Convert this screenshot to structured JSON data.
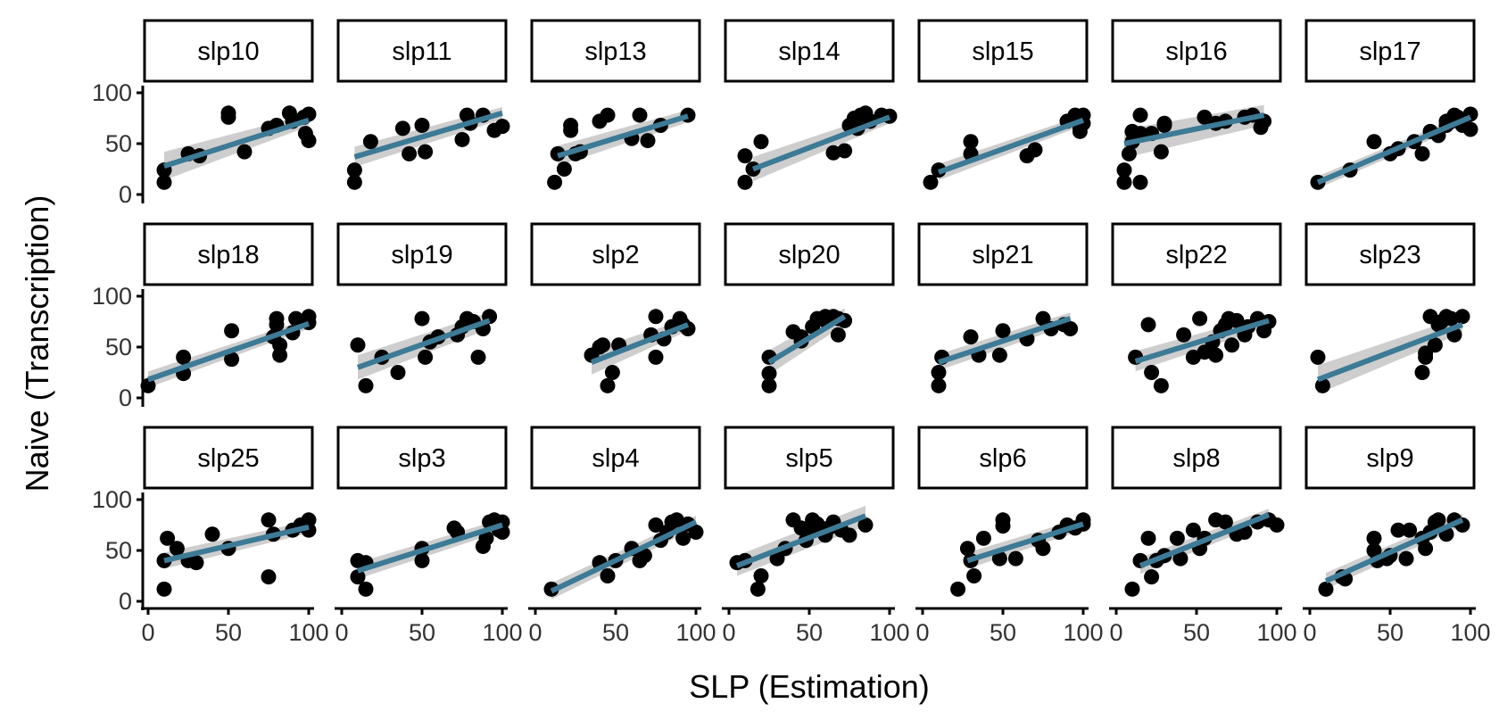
{
  "chart_data": {
    "type": "scatter",
    "layout": "facet-grid 3 rows x 7 columns",
    "xlabel": "SLP (Estimation)",
    "ylabel": "Naive (Transcription)",
    "xlim": [
      0,
      100
    ],
    "ylim": [
      0,
      100
    ],
    "xticks": [
      "0",
      "50",
      "100"
    ],
    "yticks": [
      "0",
      "50",
      "100"
    ],
    "grid": false,
    "point_color": "#000000",
    "line_color": "#3d7a96",
    "band_color": "#bebebe",
    "panels": [
      {
        "label": "slp10",
        "x": [
          10,
          10,
          25,
          32,
          50,
          50,
          60,
          75,
          80,
          88,
          90,
          97,
          98,
          100,
          100
        ],
        "y": [
          12,
          24,
          40,
          38,
          76,
          80,
          42,
          65,
          68,
          80,
          72,
          76,
          60,
          53,
          79
        ],
        "fit": [
          [
            10,
            28
          ],
          [
            100,
            73
          ]
        ],
        "band": [
          14,
          6
        ]
      },
      {
        "label": "slp11",
        "x": [
          8,
          8,
          18,
          38,
          42,
          50,
          52,
          75,
          78,
          80,
          88,
          95,
          100
        ],
        "y": [
          12,
          24,
          52,
          65,
          40,
          68,
          42,
          54,
          78,
          70,
          78,
          63,
          67
        ],
        "fit": [
          [
            8,
            37
          ],
          [
            100,
            80
          ]
        ],
        "band": [
          10,
          6
        ]
      },
      {
        "label": "slp13",
        "x": [
          12,
          14,
          18,
          22,
          22,
          25,
          28,
          40,
          45,
          60,
          65,
          70,
          78,
          95
        ],
        "y": [
          12,
          40,
          25,
          68,
          63,
          40,
          42,
          72,
          78,
          55,
          78,
          53,
          68,
          78
        ],
        "fit": [
          [
            14,
            38
          ],
          [
            95,
            77
          ]
        ],
        "band": [
          10,
          6
        ]
      },
      {
        "label": "slp14",
        "x": [
          10,
          10,
          15,
          20,
          65,
          72,
          75,
          78,
          80,
          82,
          85,
          88,
          95,
          100
        ],
        "y": [
          12,
          38,
          25,
          52,
          41,
          43,
          68,
          75,
          65,
          78,
          80,
          72,
          78,
          77
        ],
        "fit": [
          [
            15,
            25
          ],
          [
            100,
            76
          ]
        ],
        "band": [
          12,
          6
        ]
      },
      {
        "label": "slp15",
        "x": [
          5,
          10,
          30,
          30,
          65,
          70,
          90,
          95,
          98,
          98,
          100,
          100
        ],
        "y": [
          12,
          24,
          40,
          52,
          38,
          44,
          72,
          78,
          66,
          62,
          70,
          78
        ],
        "fit": [
          [
            10,
            22
          ],
          [
            100,
            73
          ]
        ],
        "band": [
          8,
          5
        ]
      },
      {
        "label": "slp16",
        "x": [
          5,
          5,
          8,
          10,
          10,
          15,
          15,
          15,
          22,
          28,
          30,
          30,
          55,
          62,
          68,
          80,
          85,
          90,
          92
        ],
        "y": [
          12,
          24,
          40,
          52,
          62,
          12,
          60,
          78,
          60,
          42,
          68,
          70,
          76,
          70,
          72,
          76,
          78,
          66,
          72
        ],
        "fit": [
          [
            5,
            50
          ],
          [
            92,
            78
          ]
        ],
        "band": [
          14,
          10
        ]
      },
      {
        "label": "slp17",
        "x": [
          5,
          25,
          40,
          50,
          55,
          65,
          70,
          75,
          80,
          85,
          85,
          88,
          90,
          92,
          95,
          100,
          100
        ],
        "y": [
          12,
          24,
          52,
          40,
          45,
          52,
          40,
          62,
          58,
          68,
          72,
          72,
          78,
          76,
          68,
          64,
          79
        ],
        "fit": [
          [
            5,
            12
          ],
          [
            100,
            76
          ]
        ],
        "band": [
          6,
          5
        ]
      },
      {
        "label": "slp18",
        "x": [
          0,
          22,
          22,
          52,
          52,
          78,
          80,
          80,
          82,
          82,
          90,
          92,
          100,
          100
        ],
        "y": [
          12,
          24,
          40,
          38,
          66,
          60,
          78,
          72,
          52,
          42,
          64,
          78,
          74,
          80
        ],
        "fit": [
          [
            0,
            18
          ],
          [
            100,
            73
          ]
        ],
        "band": [
          8,
          5
        ]
      },
      {
        "label": "slp19",
        "x": [
          10,
          15,
          25,
          35,
          50,
          52,
          55,
          60,
          72,
          75,
          78,
          82,
          85,
          88,
          92
        ],
        "y": [
          52,
          12,
          40,
          25,
          78,
          40,
          55,
          60,
          62,
          70,
          78,
          75,
          40,
          68,
          80
        ],
        "fit": [
          [
            10,
            30
          ],
          [
            92,
            76
          ]
        ],
        "band": [
          12,
          8
        ]
      },
      {
        "label": "slp2",
        "x": [
          35,
          40,
          42,
          45,
          48,
          52,
          72,
          75,
          75,
          80,
          85,
          90,
          92,
          95
        ],
        "y": [
          42,
          50,
          52,
          12,
          25,
          52,
          62,
          80,
          40,
          58,
          70,
          78,
          72,
          68
        ],
        "fit": [
          [
            35,
            35
          ],
          [
            95,
            72
          ]
        ],
        "band": [
          12,
          6
        ]
      },
      {
        "label": "slp20",
        "x": [
          25,
          25,
          25,
          40,
          45,
          45,
          52,
          55,
          60,
          60,
          65,
          68,
          68,
          72
        ],
        "y": [
          12,
          24,
          40,
          65,
          56,
          60,
          70,
          78,
          80,
          76,
          80,
          62,
          78,
          76
        ],
        "fit": [
          [
            25,
            35
          ],
          [
            72,
            80
          ]
        ],
        "band": [
          12,
          8
        ]
      },
      {
        "label": "slp21",
        "x": [
          10,
          10,
          12,
          30,
          35,
          48,
          50,
          65,
          75,
          80,
          88,
          92
        ],
        "y": [
          12,
          25,
          40,
          60,
          42,
          42,
          66,
          58,
          78,
          68,
          72,
          68
        ],
        "fit": [
          [
            10,
            35
          ],
          [
            92,
            78
          ]
        ],
        "band": [
          8,
          6
        ]
      },
      {
        "label": "slp22",
        "x": [
          12,
          20,
          22,
          28,
          42,
          48,
          52,
          55,
          60,
          62,
          65,
          68,
          70,
          72,
          75,
          80,
          82,
          88,
          92,
          95
        ],
        "y": [
          40,
          72,
          25,
          12,
          62,
          40,
          78,
          45,
          55,
          42,
          66,
          72,
          78,
          52,
          76,
          62,
          70,
          78,
          66,
          75
        ],
        "fit": [
          [
            12,
            36
          ],
          [
            95,
            76
          ]
        ],
        "band": [
          10,
          6
        ]
      },
      {
        "label": "slp23",
        "x": [
          5,
          8,
          70,
          72,
          72,
          75,
          78,
          80,
          82,
          85,
          88,
          90,
          95
        ],
        "y": [
          40,
          12,
          25,
          40,
          44,
          80,
          52,
          72,
          75,
          80,
          78,
          62,
          80
        ],
        "fit": [
          [
            5,
            18
          ],
          [
            95,
            72
          ]
        ],
        "band": [
          14,
          8
        ]
      },
      {
        "label": "slp25",
        "x": [
          10,
          10,
          12,
          18,
          25,
          30,
          40,
          50,
          75,
          75,
          78,
          90,
          95,
          100,
          100
        ],
        "y": [
          12,
          40,
          62,
          52,
          40,
          38,
          66,
          52,
          24,
          80,
          66,
          70,
          75,
          70,
          80
        ],
        "fit": [
          [
            10,
            40
          ],
          [
            100,
            73
          ]
        ],
        "band": [
          8,
          6
        ]
      },
      {
        "label": "slp3",
        "x": [
          10,
          10,
          15,
          15,
          50,
          50,
          70,
          72,
          88,
          90,
          92,
          95,
          98,
          100,
          100
        ],
        "y": [
          24,
          40,
          12,
          38,
          40,
          52,
          72,
          68,
          54,
          62,
          78,
          80,
          70,
          78,
          68
        ],
        "fit": [
          [
            10,
            30
          ],
          [
            100,
            75
          ]
        ],
        "band": [
          8,
          6
        ]
      },
      {
        "label": "slp4",
        "x": [
          10,
          40,
          45,
          50,
          60,
          65,
          68,
          75,
          78,
          82,
          85,
          88,
          92,
          95,
          100
        ],
        "y": [
          12,
          38,
          25,
          40,
          52,
          40,
          45,
          75,
          60,
          68,
          78,
          80,
          62,
          76,
          68
        ],
        "fit": [
          [
            10,
            10
          ],
          [
            100,
            78
          ]
        ],
        "band": [
          8,
          6
        ]
      },
      {
        "label": "slp5",
        "x": [
          5,
          10,
          18,
          20,
          30,
          35,
          40,
          45,
          48,
          50,
          52,
          55,
          58,
          60,
          62,
          65,
          70,
          75,
          85
        ],
        "y": [
          38,
          40,
          12,
          25,
          42,
          52,
          80,
          72,
          60,
          68,
          80,
          76,
          70,
          65,
          72,
          78,
          70,
          65,
          75
        ],
        "fit": [
          [
            5,
            35
          ],
          [
            85,
            84
          ]
        ],
        "band": [
          10,
          10
        ]
      },
      {
        "label": "slp6",
        "x": [
          22,
          28,
          30,
          32,
          38,
          48,
          50,
          50,
          58,
          72,
          75,
          85,
          90,
          95,
          100,
          100
        ],
        "y": [
          12,
          52,
          40,
          25,
          62,
          42,
          74,
          80,
          42,
          60,
          52,
          68,
          75,
          72,
          80,
          76
        ],
        "fit": [
          [
            28,
            40
          ],
          [
            100,
            76
          ]
        ],
        "band": [
          8,
          6
        ]
      },
      {
        "label": "slp8",
        "x": [
          10,
          15,
          20,
          22,
          25,
          30,
          38,
          40,
          48,
          52,
          55,
          62,
          68,
          75,
          80,
          88,
          95,
          100
        ],
        "y": [
          12,
          40,
          62,
          24,
          40,
          45,
          62,
          42,
          70,
          52,
          62,
          80,
          78,
          66,
          68,
          78,
          80,
          75
        ],
        "fit": [
          [
            15,
            35
          ],
          [
            95,
            85
          ]
        ],
        "band": [
          8,
          6
        ]
      },
      {
        "label": "slp9",
        "x": [
          10,
          20,
          22,
          40,
          40,
          42,
          48,
          50,
          55,
          60,
          62,
          70,
          72,
          75,
          78,
          80,
          85,
          90,
          95
        ],
        "y": [
          12,
          24,
          22,
          62,
          50,
          40,
          42,
          45,
          70,
          42,
          70,
          62,
          52,
          68,
          78,
          80,
          66,
          80,
          75
        ],
        "fit": [
          [
            10,
            20
          ],
          [
            95,
            80
          ]
        ],
        "band": [
          8,
          6
        ]
      }
    ]
  }
}
